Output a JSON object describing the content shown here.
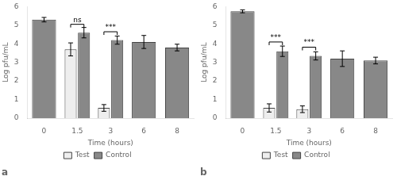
{
  "chart_data": [
    {
      "type": "bar",
      "title": "a",
      "categories": [
        "0",
        "1.5",
        "3",
        "6",
        "8"
      ],
      "series": [
        {
          "name": "Test",
          "color": "#eeeeee",
          "values": [
            null,
            3.7,
            0.55,
            null,
            null
          ],
          "errors": [
            null,
            0.35,
            0.18,
            null,
            null
          ]
        },
        {
          "name": "Control",
          "color": "#888888",
          "values": [
            5.3,
            4.6,
            4.2,
            4.1,
            3.8
          ],
          "errors": [
            0.12,
            0.28,
            0.22,
            0.35,
            0.18
          ]
        }
      ],
      "annotations": [
        {
          "category": "1.5",
          "y": 5.05,
          "text": "ns"
        },
        {
          "category": "3",
          "y": 4.65,
          "text": "***"
        }
      ],
      "xlabel": "Time (hours)",
      "ylabel": "Log pfu/mL",
      "ylim": [
        0,
        6
      ],
      "yticks": [
        0,
        1,
        2,
        3,
        4,
        5,
        6
      ],
      "grid": false,
      "legend": "bottom"
    },
    {
      "type": "bar",
      "title": "b",
      "categories": [
        "0",
        "1.5",
        "3",
        "6",
        "8"
      ],
      "series": [
        {
          "name": "Test",
          "color": "#eeeeee",
          "values": [
            null,
            0.55,
            0.48,
            null,
            null
          ],
          "errors": [
            null,
            0.22,
            0.18,
            null,
            null
          ]
        },
        {
          "name": "Control",
          "color": "#888888",
          "values": [
            5.75,
            3.6,
            3.35,
            3.2,
            3.1
          ],
          "errors": [
            0.08,
            0.28,
            0.22,
            0.42,
            0.18
          ]
        }
      ],
      "annotations": [
        {
          "category": "1.5",
          "y": 4.1,
          "text": "***"
        },
        {
          "category": "3",
          "y": 3.82,
          "text": "***"
        }
      ],
      "xlabel": "Time (hours)",
      "ylabel": "Log pfu/mL",
      "ylim": [
        0,
        6
      ],
      "yticks": [
        0,
        1,
        2,
        3,
        4,
        5,
        6
      ],
      "grid": false,
      "legend": "bottom"
    }
  ]
}
